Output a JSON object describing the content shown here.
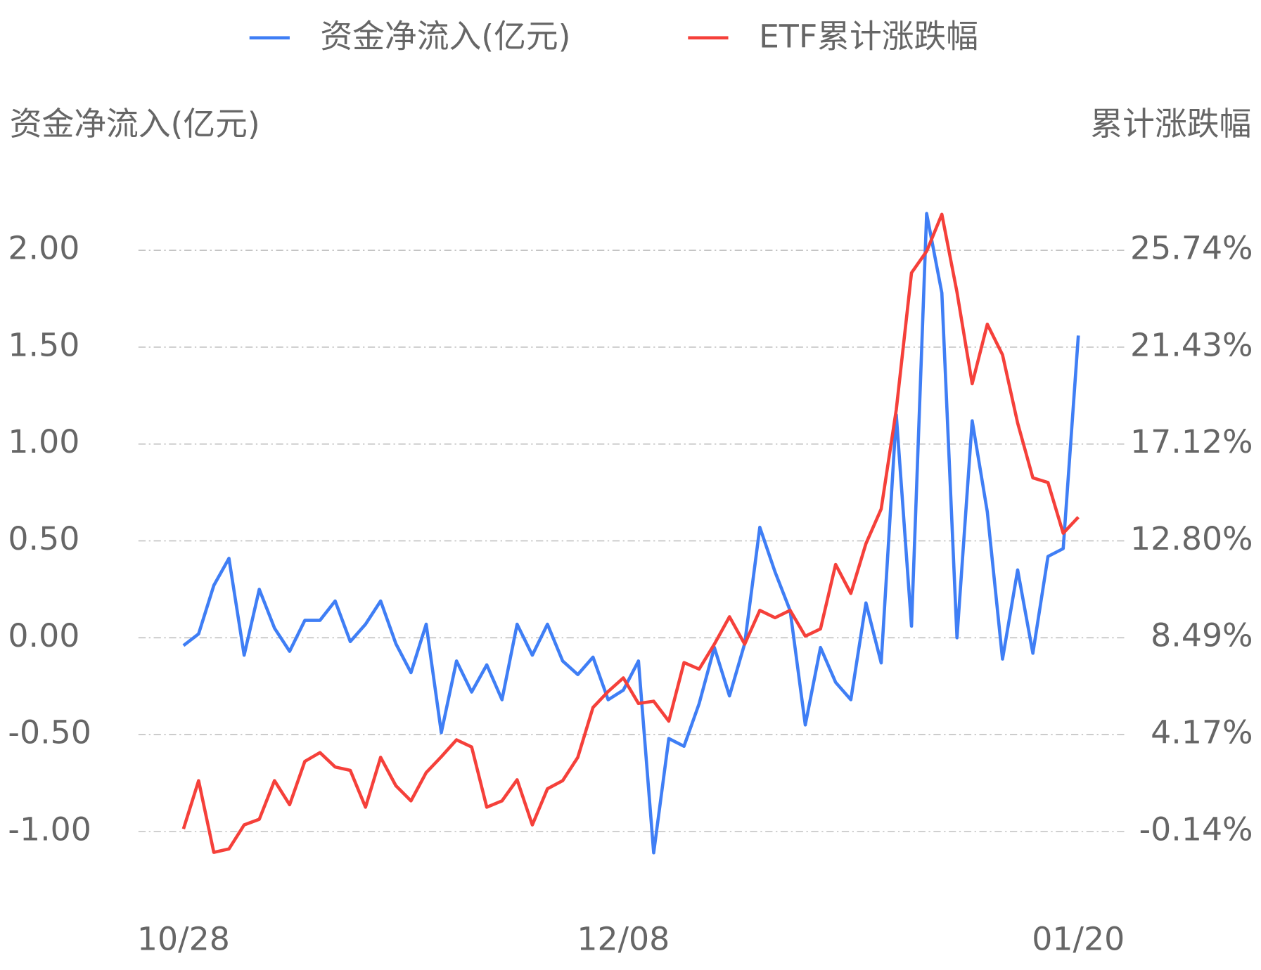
{
  "chart_data": {
    "type": "line",
    "y_label": "资金净流入(亿元)",
    "y2_label": "累计涨跌幅",
    "categories": [
      "10/28",
      null,
      null,
      null,
      null,
      null,
      null,
      null,
      null,
      null,
      null,
      null,
      null,
      null,
      null,
      null,
      null,
      null,
      null,
      null,
      null,
      null,
      null,
      null,
      null,
      null,
      null,
      null,
      null,
      "12/08",
      null,
      null,
      null,
      null,
      null,
      null,
      null,
      null,
      null,
      null,
      null,
      null,
      null,
      null,
      null,
      null,
      null,
      null,
      null,
      null,
      null,
      null,
      null,
      null,
      null,
      null,
      null,
      null,
      null,
      "01/20"
    ],
    "series": [
      {
        "name": "资金净流入(亿元)",
        "color": "#3f7ef5",
        "axis": "y",
        "values": [
          -0.04,
          0.02,
          0.27,
          0.41,
          -0.09,
          0.25,
          0.05,
          -0.07,
          0.09,
          0.09,
          0.19,
          -0.02,
          0.07,
          0.19,
          -0.03,
          -0.18,
          0.07,
          -0.49,
          -0.12,
          -0.28,
          -0.14,
          -0.32,
          0.07,
          -0.09,
          0.07,
          -0.12,
          -0.19,
          -0.1,
          -0.32,
          -0.27,
          -0.12,
          -1.11,
          -0.52,
          -0.56,
          -0.34,
          -0.05,
          -0.3,
          -0.03,
          0.57,
          0.34,
          0.14,
          -0.45,
          -0.05,
          -0.23,
          -0.32,
          0.18,
          -0.13,
          1.15,
          0.06,
          2.19,
          1.78,
          0.0,
          1.12,
          0.65,
          -0.11,
          0.35,
          -0.08,
          0.42,
          0.46,
          1.56
        ]
      },
      {
        "name": "ETF累计涨跌幅",
        "color": "#f5403a",
        "axis": "y2",
        "values": [
          -0.03,
          2.12,
          -1.07,
          -0.92,
          0.15,
          0.4,
          2.12,
          1.05,
          2.98,
          3.37,
          2.73,
          2.58,
          0.94,
          3.16,
          1.9,
          1.22,
          2.48,
          3.19,
          3.94,
          3.62,
          0.94,
          1.22,
          2.16,
          0.15,
          1.76,
          2.12,
          3.16,
          5.38,
          6.09,
          6.7,
          5.56,
          5.66,
          4.77,
          7.38,
          7.09,
          8.2,
          9.42,
          8.2,
          9.71,
          9.38,
          9.71,
          8.56,
          8.88,
          11.75,
          10.46,
          12.68,
          14.22,
          18.65,
          24.74,
          25.7,
          27.35,
          23.88,
          19.8,
          22.45,
          21.09,
          18.05,
          15.61,
          15.4,
          13.14,
          13.86
        ]
      }
    ],
    "ylim": [
      -1.25,
      2.25
    ],
    "yticks": [
      {
        "value": -1,
        "label": "-1.00"
      },
      {
        "value": -0.5,
        "label": "-0.50"
      },
      {
        "value": 0,
        "label": "0.00"
      },
      {
        "value": 0.5,
        "label": "0.50"
      },
      {
        "value": 1,
        "label": "1.00"
      },
      {
        "value": 1.5,
        "label": "1.50"
      },
      {
        "value": 2,
        "label": "2.00"
      }
    ],
    "y2lim": [
      -2.3,
      27.9
    ],
    "y2ticks": [
      {
        "value": -0.14,
        "label": "-0.14%"
      },
      {
        "value": 4.17,
        "label": "4.17%"
      },
      {
        "value": 8.49,
        "label": "8.49%"
      },
      {
        "value": 12.8,
        "label": "12.80%"
      },
      {
        "value": 17.12,
        "label": "17.12%"
      },
      {
        "value": 21.43,
        "label": "21.43%"
      },
      {
        "value": 25.74,
        "label": "25.74%"
      }
    ],
    "grid": true,
    "legend": "top"
  }
}
